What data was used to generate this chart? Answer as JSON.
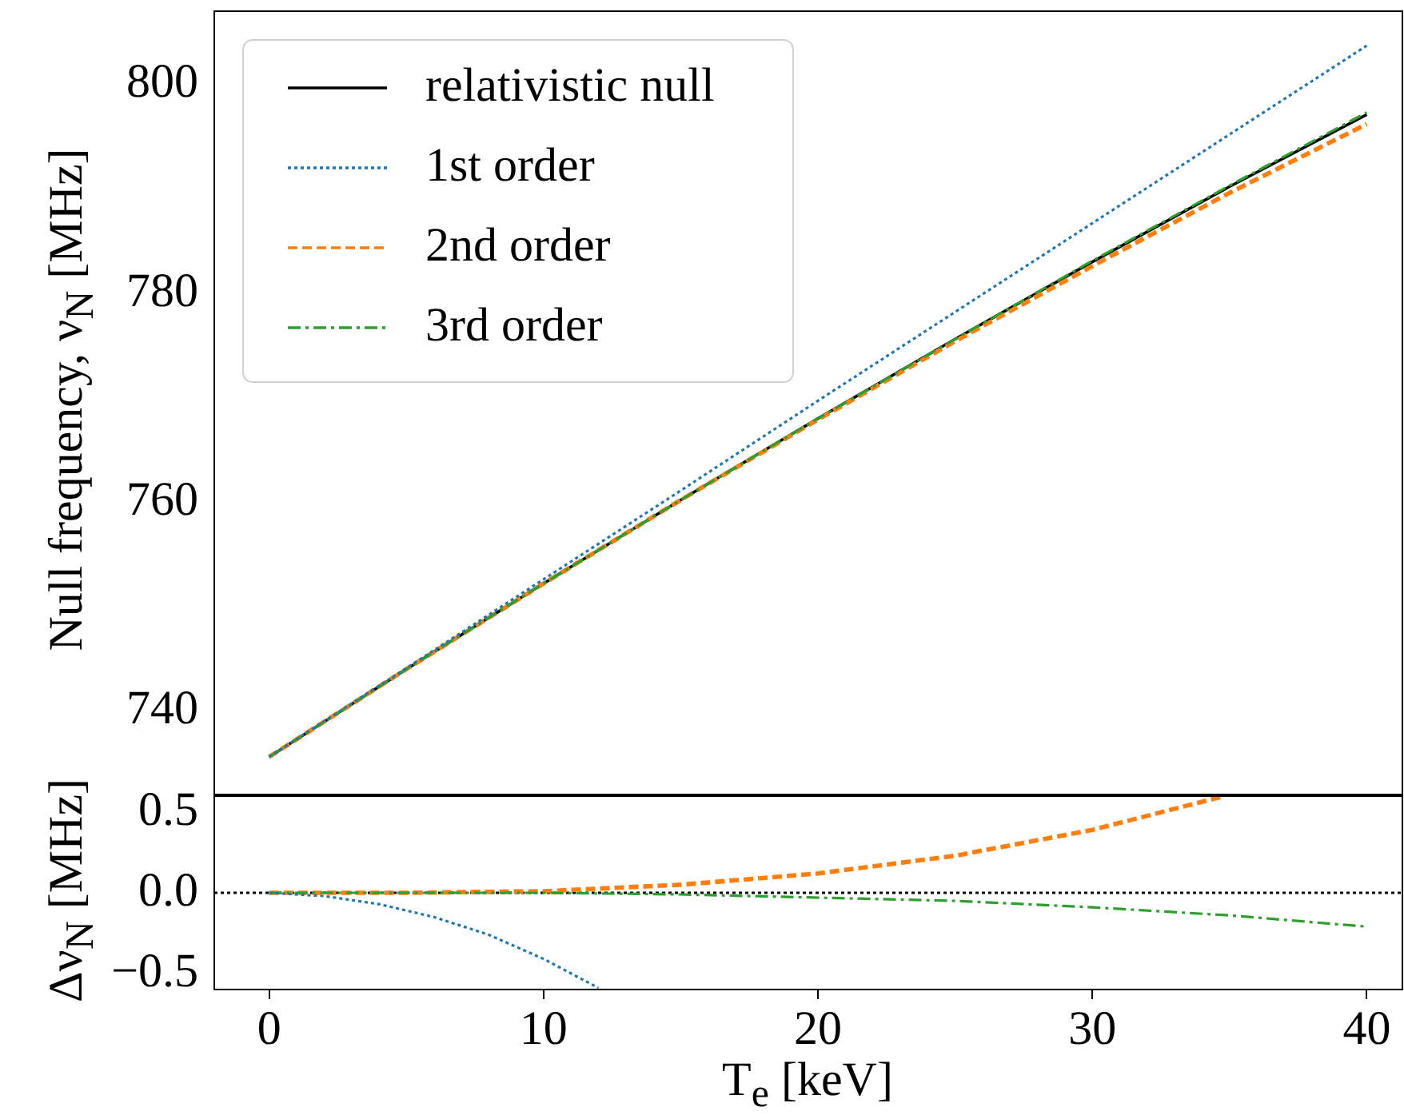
{
  "chart_data": [
    {
      "type": "line",
      "ylabel": "Null frequency, ν$_{N}$ [MHz]",
      "xlim": [
        -2,
        41.3
      ],
      "xticks": [
        0,
        10,
        20,
        30,
        40
      ],
      "ylim": [
        732,
        807
      ],
      "yticks": [
        740,
        760,
        780,
        800
      ],
      "tick_labels": "y",
      "legend": "top left",
      "series": [
        {
          "name": "relativistic null",
          "color": "#000000",
          "line_style": "solid",
          "x": [
            0,
            5,
            10,
            15,
            20,
            25,
            30,
            35,
            40
          ],
          "values": [
            735.6,
            744.0,
            752.2,
            760.2,
            768.0,
            775.6,
            783.0,
            790.2,
            797.1
          ]
        },
        {
          "name": "1st order",
          "color": "#1f77b4",
          "line_style": "dotted",
          "x": [
            0,
            5,
            10,
            15,
            20,
            25,
            30,
            35,
            40
          ],
          "values": [
            735.6,
            744.1,
            752.6,
            761.1,
            769.7,
            778.2,
            786.7,
            795.2,
            803.7
          ]
        },
        {
          "name": "2nd order",
          "color": "#ff7f0e",
          "line_style": "dashed",
          "x": [
            0,
            5,
            10,
            15,
            20,
            25,
            30,
            35,
            40
          ],
          "values": [
            735.6,
            744.0,
            752.2,
            760.2,
            767.9,
            775.4,
            782.6,
            789.6,
            796.2
          ]
        },
        {
          "name": "3rd order",
          "color": "#2ca02c",
          "line_style": "dashdot",
          "x": [
            0,
            5,
            10,
            15,
            20,
            25,
            30,
            35,
            40
          ],
          "values": [
            735.6,
            744.0,
            752.2,
            760.2,
            768.0,
            775.6,
            783.1,
            790.3,
            797.3
          ]
        }
      ]
    },
    {
      "type": "line",
      "xlabel": "T$_{e}$ [keV]",
      "ylabel": "Δν$_{N}$ [MHz]",
      "xlim": [
        -2,
        41.3
      ],
      "xticks": [
        0,
        10,
        20,
        30,
        40
      ],
      "ylim": [
        -0.6,
        0.6
      ],
      "yticks": [
        {
          "value": -0.5,
          "label": "−0.5"
        },
        {
          "value": 0,
          "label": "0.0"
        },
        {
          "value": 0.5,
          "label": "0.5"
        }
      ],
      "ref_lines": [
        {
          "axis": "y",
          "value": 0,
          "color": "#000000",
          "line_style": "dotted"
        }
      ],
      "series": [
        {
          "color": "#1f77b4",
          "line_style": "dotted",
          "x": [
            0,
            2,
            4,
            6,
            8,
            10,
            12
          ],
          "values": [
            0,
            -0.02,
            -0.07,
            -0.15,
            -0.26,
            -0.41,
            -0.59
          ]
        },
        {
          "color": "#ff7f0e",
          "line_style": "dashed",
          "x": [
            0,
            5,
            10,
            15,
            20,
            25,
            30,
            34.8
          ],
          "values": [
            0,
            0,
            0.01,
            0.05,
            0.12,
            0.23,
            0.39,
            0.6
          ]
        },
        {
          "color": "#2ca02c",
          "line_style": "dashdot",
          "x": [
            0,
            5,
            10,
            15,
            20,
            25,
            30,
            35,
            40
          ],
          "values": [
            0,
            0,
            0,
            -0.01,
            -0.03,
            -0.05,
            -0.09,
            -0.14,
            -0.21
          ]
        }
      ]
    }
  ]
}
